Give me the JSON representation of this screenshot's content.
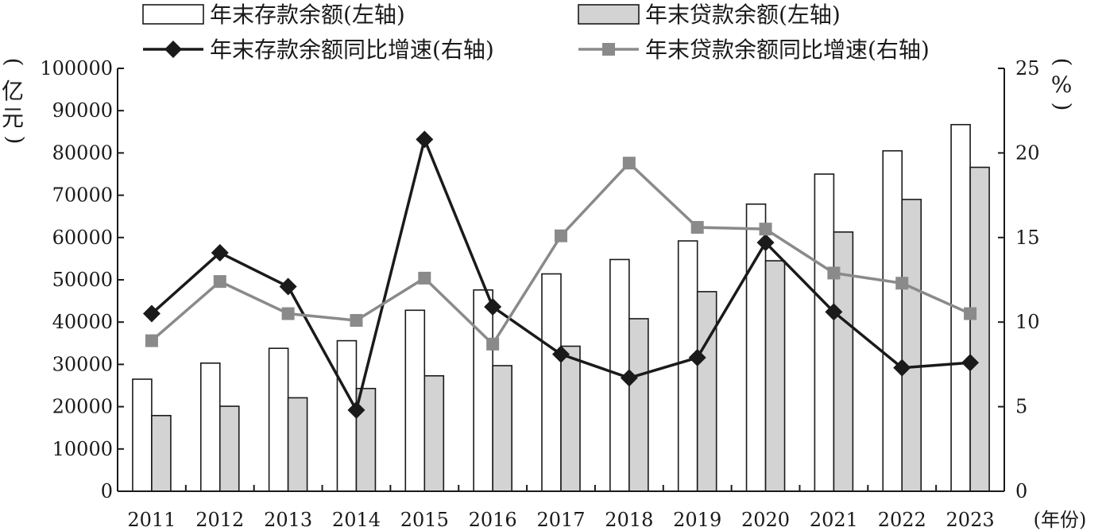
{
  "chart_data": {
    "type": "bar",
    "categories": [
      "2011",
      "2012",
      "2013",
      "2014",
      "2015",
      "2016",
      "2017",
      "2018",
      "2019",
      "2020",
      "2021",
      "2022",
      "2023"
    ],
    "x_unit": "(年份)",
    "y_left": {
      "unit_top": "(",
      "unit_mid": "亿",
      "unit_mid2": "元",
      "unit_bottom": ")",
      "ylim": [
        0,
        100000
      ],
      "ticks": [
        0,
        10000,
        20000,
        30000,
        40000,
        50000,
        60000,
        70000,
        80000,
        90000,
        100000
      ]
    },
    "y_right": {
      "unit_top": "(",
      "unit_mid": "%",
      "unit_bottom": ")",
      "ylim": [
        0,
        25
      ],
      "ticks": [
        0,
        5,
        10,
        15,
        20,
        25
      ]
    },
    "series": [
      {
        "name": "年末存款余额(左轴)",
        "kind": "bar",
        "axis": "left",
        "fill": "#ffffff",
        "stroke": "#1a1a1a",
        "values": [
          26500,
          30300,
          33800,
          35600,
          42800,
          47600,
          51400,
          54800,
          59200,
          67900,
          75000,
          80500,
          86700
        ]
      },
      {
        "name": "年末贷款余额(左轴)",
        "kind": "bar",
        "axis": "left",
        "fill": "#d3d3d3",
        "stroke": "#1a1a1a",
        "values": [
          17900,
          20100,
          22100,
          24300,
          27300,
          29700,
          34300,
          40800,
          47200,
          54500,
          61300,
          69000,
          76600
        ]
      },
      {
        "name": "年末存款余额同比增速(右轴)",
        "kind": "line",
        "axis": "right",
        "color": "#1a1a1a",
        "marker": "diamond",
        "values": [
          10.5,
          14.1,
          12.1,
          4.8,
          20.8,
          10.9,
          8.1,
          6.7,
          7.9,
          14.7,
          10.6,
          7.3,
          7.6
        ]
      },
      {
        "name": "年末贷款余额同比增速(右轴)",
        "kind": "line",
        "axis": "right",
        "color": "#8a8a8a",
        "marker": "square",
        "values": [
          8.9,
          12.4,
          10.5,
          10.1,
          12.6,
          8.7,
          15.1,
          19.4,
          15.6,
          15.5,
          12.9,
          12.3,
          10.5
        ]
      }
    ],
    "legend_position": "top",
    "grid": false
  }
}
